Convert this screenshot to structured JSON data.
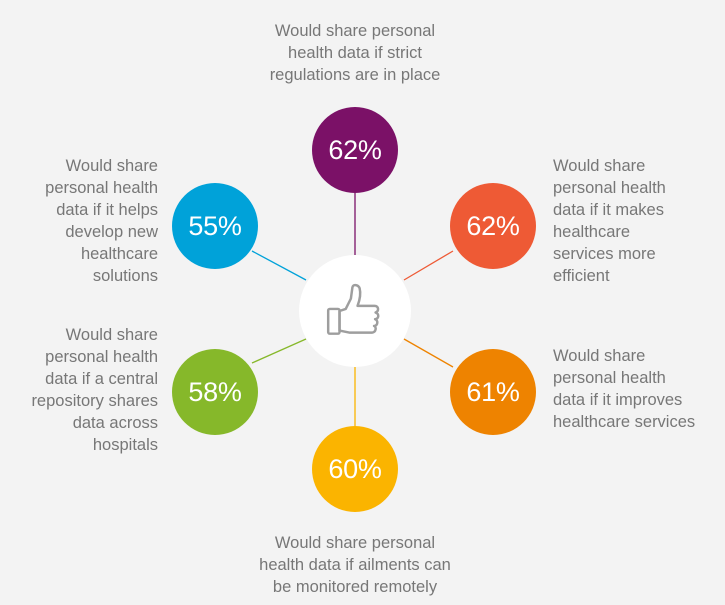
{
  "colors": {
    "background": "#f3f3f3",
    "hub": "#ffffff",
    "hub_icon_stroke": "#9e9e9e",
    "caption_text": "#777777"
  },
  "hub": {
    "icon": "thumbs-up-icon"
  },
  "items": [
    {
      "id": "strict-regulations",
      "value": "62%",
      "color": "#7b1167",
      "caption": "Would share personal\nhealth data if strict\nregulations are in place"
    },
    {
      "id": "efficient-services",
      "value": "62%",
      "color": "#ee5a35",
      "caption": "Would share\npersonal health\ndata if it makes\nhealthcare\nservices more\nefficient"
    },
    {
      "id": "improves-services",
      "value": "61%",
      "color": "#ee8300",
      "caption": "Would share\npersonal health\ndata if it improves\nhealthcare services"
    },
    {
      "id": "monitored-remotely",
      "value": "60%",
      "color": "#fbb400",
      "caption": "Would share personal\nhealth data if ailments can\nbe monitored remotely"
    },
    {
      "id": "central-repository",
      "value": "58%",
      "color": "#86b82a",
      "caption": "Would share\npersonal health\ndata if a central\nrepository shares\ndata across\nhospitals"
    },
    {
      "id": "new-solutions",
      "value": "55%",
      "color": "#00a2d9",
      "caption": "Would share\npersonal health\ndata if it helps\ndevelop new\nhealthcare\nsolutions"
    }
  ]
}
